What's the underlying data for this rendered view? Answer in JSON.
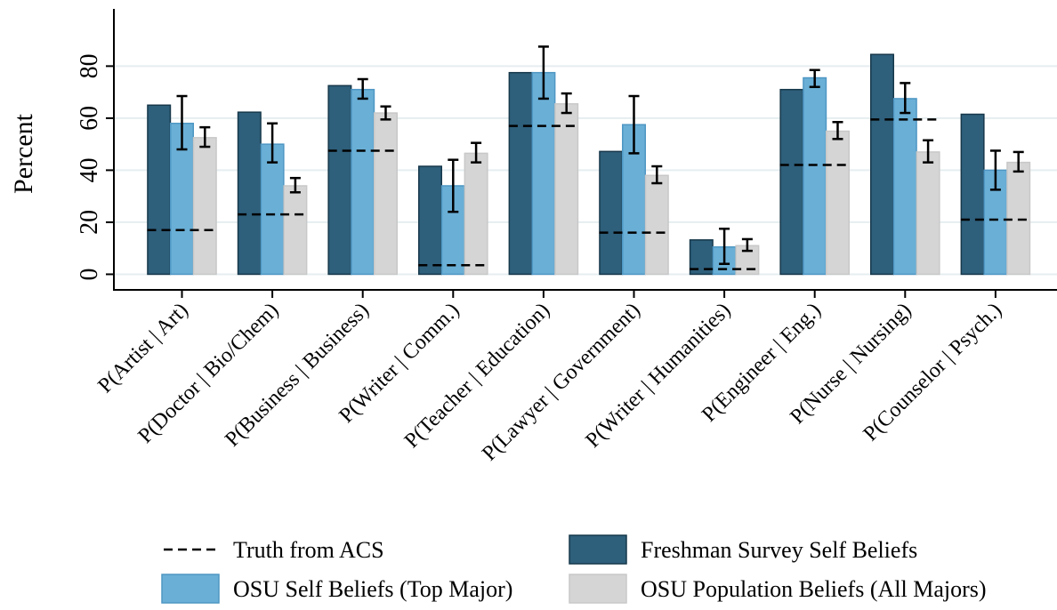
{
  "chart_data": {
    "type": "bar",
    "ylabel": "Percent",
    "xlabel": "",
    "title": "",
    "ylim": [
      -6,
      102
    ],
    "yticks": [
      0,
      20,
      40,
      60,
      80
    ],
    "grid": true,
    "legend_position": "bottom",
    "categories": [
      "P(Artist | Art)",
      "P(Doctor | Bio/Chem)",
      "P(Business | Business)",
      "P(Writer | Comm.)",
      "P(Teacher | Education)",
      "P(Lawyer | Government)",
      "P(Writer | Humanities)",
      "P(Engineer | Eng.)",
      "P(Nurse | Nursing)",
      "P(Counselor | Psych.)"
    ],
    "series": [
      {
        "name": "Freshman Survey Self Beliefs",
        "color": "#2e5f7b",
        "values": [
          65,
          62.3,
          72.5,
          41.5,
          77.5,
          47.2,
          13.2,
          71,
          84.5,
          61.5
        ]
      },
      {
        "name": "OSU Self Beliefs (Top Major)",
        "color": "#6aafd6",
        "values": [
          58,
          50,
          71,
          34,
          77.5,
          57.5,
          10.5,
          75.5,
          67.5,
          40
        ],
        "error_low": [
          48,
          43,
          67.5,
          24,
          67.5,
          46.5,
          4,
          72,
          62,
          32.5
        ],
        "error_high": [
          68.5,
          58,
          75,
          44,
          87.5,
          68.5,
          17.5,
          78.5,
          73.5,
          47.5
        ]
      },
      {
        "name": "OSU Population Beliefs (All Majors)",
        "color": "#d5d5d5",
        "values": [
          52.5,
          34,
          62,
          46.5,
          65.5,
          38,
          11,
          55,
          47,
          43
        ],
        "error_low": [
          49,
          31.5,
          59.5,
          43,
          62,
          35,
          9,
          52,
          43,
          39.5
        ],
        "error_high": [
          56.5,
          37,
          64.5,
          50.5,
          69.5,
          41.5,
          13.5,
          58.5,
          51.5,
          47
        ]
      }
    ],
    "reference_lines": {
      "name": "Truth from ACS",
      "style": "dashed",
      "color": "#000000",
      "values": [
        17,
        23,
        47.5,
        3.5,
        57,
        16,
        2,
        42,
        59.5,
        21
      ]
    },
    "legend": [
      {
        "label": "Truth from ACS",
        "symbol": "dashed-line"
      },
      {
        "label": "Freshman Survey Self Beliefs",
        "symbol": "box",
        "color": "#2e5f7b"
      },
      {
        "label": "OSU Self Beliefs (Top Major)",
        "symbol": "box",
        "color": "#6aafd6"
      },
      {
        "label": "OSU Population Beliefs (All Majors)",
        "symbol": "box",
        "color": "#d5d5d5"
      }
    ]
  }
}
